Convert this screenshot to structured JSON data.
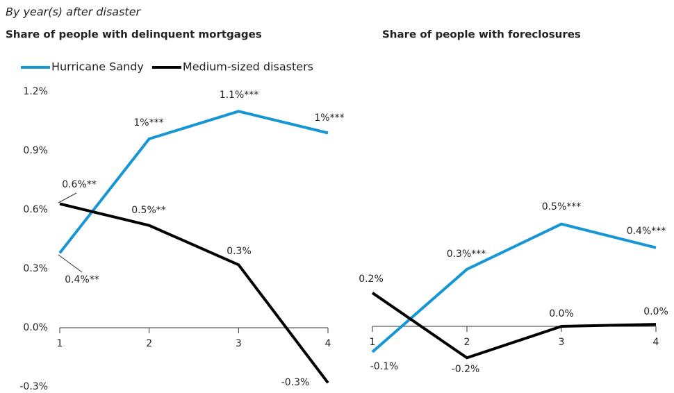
{
  "subtitle": "By year(s) after disaster",
  "chart_data": [
    {
      "type": "line",
      "title": "Share of people with delinquent mortgages",
      "x": [
        1,
        2,
        3,
        4
      ],
      "xlim": [
        1,
        4
      ],
      "xticks": [
        1,
        2,
        3,
        4
      ],
      "ylim": [
        -0.3,
        1.2
      ],
      "yticks": [
        {
          "value": -0.3,
          "label": "-0.3%"
        },
        {
          "value": 0,
          "label": "0.0%"
        },
        {
          "value": 0.3,
          "label": "0.3%"
        },
        {
          "value": 0.6,
          "label": "0.6%"
        },
        {
          "value": 0.9,
          "label": "0.9%"
        },
        {
          "value": 1.2,
          "label": "1.2%"
        }
      ],
      "series": [
        {
          "name": "Hurricane Sandy",
          "color": "#1696d2",
          "values": [
            0.38,
            0.96,
            1.1,
            0.99
          ],
          "value_labels": [
            "0.4%**",
            "1%***",
            "1.1%***",
            "1%***"
          ]
        },
        {
          "name": "Medium-sized disasters",
          "color": "#000000",
          "values": [
            0.63,
            0.52,
            0.32,
            -0.28
          ],
          "value_labels": [
            "0.6%**",
            "0.5%**",
            "0.3%",
            "-0.3%"
          ]
        }
      ]
    },
    {
      "type": "line",
      "title": "Share of people with foreclosures",
      "x": [
        1,
        2,
        3,
        4
      ],
      "xlim": [
        1,
        4
      ],
      "xticks": [
        1,
        2,
        3,
        4
      ],
      "ylim": [
        -0.3,
        1.2
      ],
      "series": [
        {
          "color": "#1696d2",
          "values": [
            -0.13,
            0.29,
            0.52,
            0.4
          ],
          "value_labels": [
            "-0.1%",
            "0.3%***",
            "0.5%***",
            "0.4%***"
          ]
        },
        {
          "color": "#000000",
          "values": [
            0.17,
            -0.16,
            0.0,
            0.01
          ],
          "value_labels": [
            "0.2%",
            "-0.2%",
            "0.0%",
            "0.0%"
          ]
        }
      ]
    }
  ]
}
